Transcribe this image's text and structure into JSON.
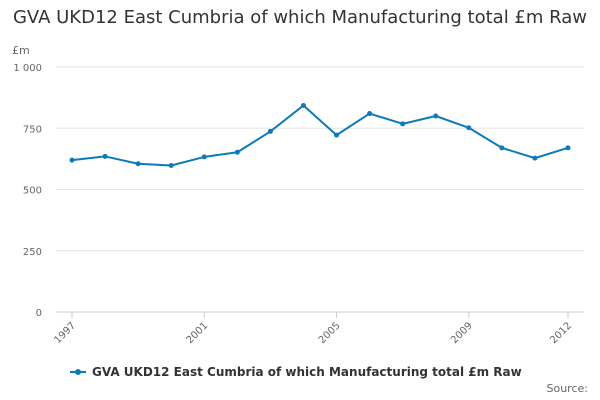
{
  "chart_data": {
    "type": "line",
    "title": "GVA UKD12 East Cumbria of which Manufacturing total £m Raw",
    "ylabel": "£m",
    "xlabel": "",
    "x": [
      1997,
      1998,
      1999,
      2000,
      2001,
      2002,
      2003,
      2004,
      2005,
      2006,
      2007,
      2008,
      2009,
      2010,
      2011,
      2012
    ],
    "x_tick_labels": [
      "1997",
      "2001",
      "2005",
      "2009",
      "2012"
    ],
    "x_tick_values": [
      1997,
      2001,
      2005,
      2009,
      2012
    ],
    "ylim": [
      0,
      1000
    ],
    "y_ticks": [
      0,
      250,
      500,
      750,
      1000
    ],
    "y_tick_labels": [
      "0",
      "250",
      "500",
      "750",
      "1 000"
    ],
    "series": [
      {
        "name": "GVA UKD12 East Cumbria of which Manufacturing total £m Raw",
        "color": "#0c7bb8",
        "values": [
          620,
          635,
          605,
          598,
          633,
          652,
          737,
          843,
          722,
          810,
          768,
          800,
          752,
          670,
          628,
          670
        ]
      }
    ],
    "grid": true,
    "legend_position": "bottom-left"
  },
  "legend": {
    "label": "GVA UKD12 East Cumbria of which Manufacturing total £m Raw"
  },
  "source": {
    "label": "Source:"
  }
}
